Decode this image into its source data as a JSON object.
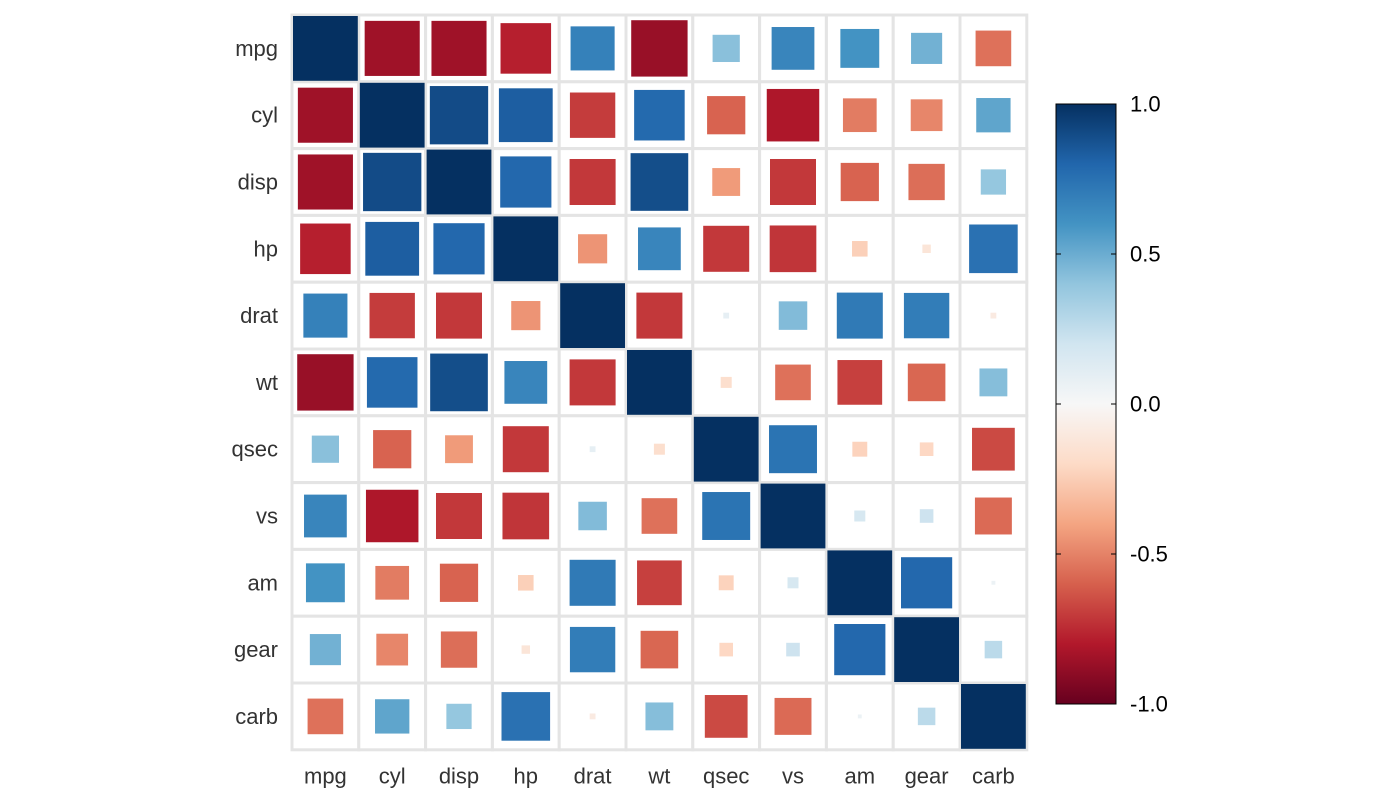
{
  "chart_data": {
    "type": "heatmap",
    "title": "",
    "subtitle": "",
    "method": "square",
    "variables": [
      "mpg",
      "cyl",
      "disp",
      "hp",
      "drat",
      "wt",
      "qsec",
      "vs",
      "am",
      "gear",
      "carb"
    ],
    "matrix": [
      [
        1.0,
        -0.85,
        -0.85,
        -0.78,
        0.68,
        -0.87,
        0.42,
        0.66,
        0.6,
        0.48,
        -0.55
      ],
      [
        -0.85,
        1.0,
        0.9,
        0.83,
        -0.7,
        0.78,
        -0.59,
        -0.81,
        -0.52,
        -0.49,
        0.53
      ],
      [
        -0.85,
        0.9,
        1.0,
        0.79,
        -0.71,
        0.89,
        -0.43,
        -0.71,
        -0.59,
        -0.56,
        0.39
      ],
      [
        -0.78,
        0.83,
        0.79,
        1.0,
        -0.45,
        0.66,
        -0.71,
        -0.72,
        -0.24,
        -0.13,
        0.75
      ],
      [
        0.68,
        -0.7,
        -0.71,
        -0.45,
        1.0,
        -0.71,
        0.09,
        0.44,
        0.71,
        0.7,
        -0.09
      ],
      [
        -0.87,
        0.78,
        0.89,
        0.66,
        -0.71,
        1.0,
        -0.17,
        -0.55,
        -0.69,
        -0.58,
        0.43
      ],
      [
        0.42,
        -0.59,
        -0.43,
        -0.71,
        0.09,
        -0.17,
        1.0,
        0.74,
        -0.23,
        -0.21,
        -0.66
      ],
      [
        0.66,
        -0.81,
        -0.71,
        -0.72,
        0.44,
        -0.55,
        0.74,
        1.0,
        0.17,
        0.21,
        -0.57
      ],
      [
        0.6,
        -0.52,
        -0.59,
        -0.24,
        0.71,
        -0.69,
        -0.23,
        0.17,
        1.0,
        0.79,
        0.06
      ],
      [
        0.48,
        -0.49,
        -0.56,
        -0.13,
        0.7,
        -0.58,
        -0.21,
        0.21,
        0.79,
        1.0,
        0.27
      ],
      [
        -0.55,
        0.53,
        0.39,
        0.75,
        -0.09,
        0.43,
        -0.66,
        -0.57,
        0.06,
        0.27,
        1.0
      ]
    ],
    "value_range": [
      -1,
      1
    ],
    "colorbar": {
      "ticks": [
        1.0,
        0.5,
        0.0,
        -0.5,
        -1.0
      ],
      "tick_labels": [
        "1.0",
        "0.5",
        "0.0",
        "-0.5",
        "-1.0"
      ],
      "stops": [
        "#67001F",
        "#B2182B",
        "#D6604D",
        "#F4A582",
        "#FDDBC7",
        "#F7F7F7",
        "#D1E5F0",
        "#92C5DE",
        "#4393C3",
        "#2166AC",
        "#053061"
      ]
    },
    "grid_color": "#e4e4e4",
    "legend_placement": "right"
  }
}
